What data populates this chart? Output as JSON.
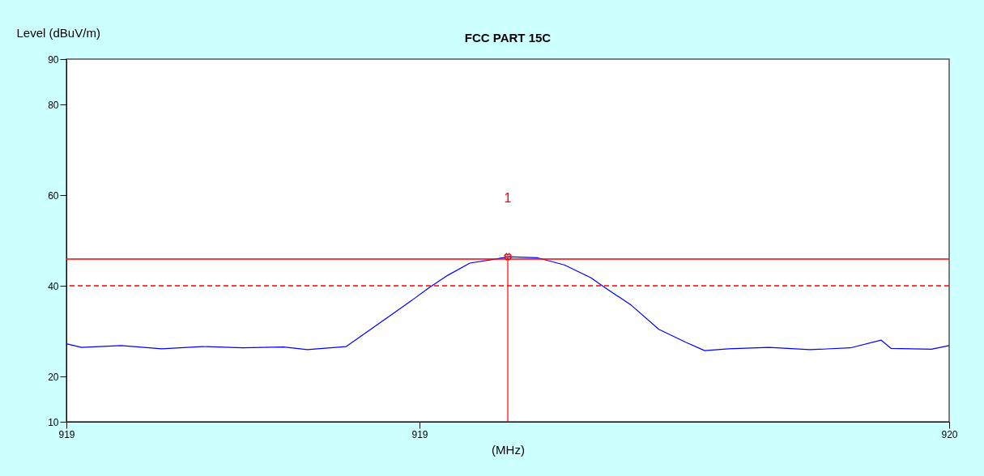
{
  "chart_data": {
    "type": "line",
    "title": "FCC PART 15C",
    "xlabel": "(MHz)",
    "ylabel": "Level (dBuV/m)",
    "xlim": [
      919.0,
      920.0
    ],
    "xticks": [
      919,
      {
        "value": 919.4,
        "label": "919"
      },
      920
    ],
    "ylim": [
      10,
      90
    ],
    "yticks": [
      10,
      20,
      40,
      60,
      80,
      90
    ],
    "grid": false,
    "series": [
      {
        "color": "#0000ff",
        "marker": "none",
        "line_style": "solid",
        "x": [
          919.0,
          919.017,
          919.062,
          919.108,
          919.154,
          919.2,
          919.246,
          919.273,
          919.317,
          919.35,
          919.39,
          919.411,
          919.432,
          919.457,
          919.487,
          919.5,
          919.533,
          919.564,
          919.594,
          919.61,
          919.64,
          919.671,
          919.702,
          919.723,
          919.75,
          919.796,
          919.842,
          919.888,
          919.923,
          919.934,
          919.98,
          920.0
        ],
        "values": [
          27.2,
          26.4,
          26.8,
          26.1,
          26.6,
          26.3,
          26.5,
          25.9,
          26.6,
          31.1,
          36.6,
          39.6,
          42.3,
          45.0,
          45.9,
          46.4,
          46.2,
          44.6,
          41.8,
          39.6,
          35.7,
          30.4,
          27.5,
          25.7,
          26.1,
          26.4,
          25.9,
          26.3,
          28.0,
          26.2,
          26.0,
          26.8
        ]
      },
      {
        "color": "#ff0000",
        "type": "line",
        "marker": "none",
        "line_style": "solid",
        "x": [
          919.5,
          919.5
        ],
        "values": [
          10,
          46.4
        ]
      },
      {
        "color": "#ff0000",
        "type": "scatter",
        "marker": "cross",
        "x": [
          919.5
        ],
        "values": [
          46.4
        ]
      }
    ],
    "ref_lines": [
      {
        "axis": "y",
        "value": 45.9,
        "color": "#ff0000",
        "line_style": "solid"
      },
      {
        "axis": "y",
        "value": 40,
        "color": "#ff0000",
        "line_style": "dashed"
      }
    ],
    "annotations": [
      "1"
    ]
  }
}
